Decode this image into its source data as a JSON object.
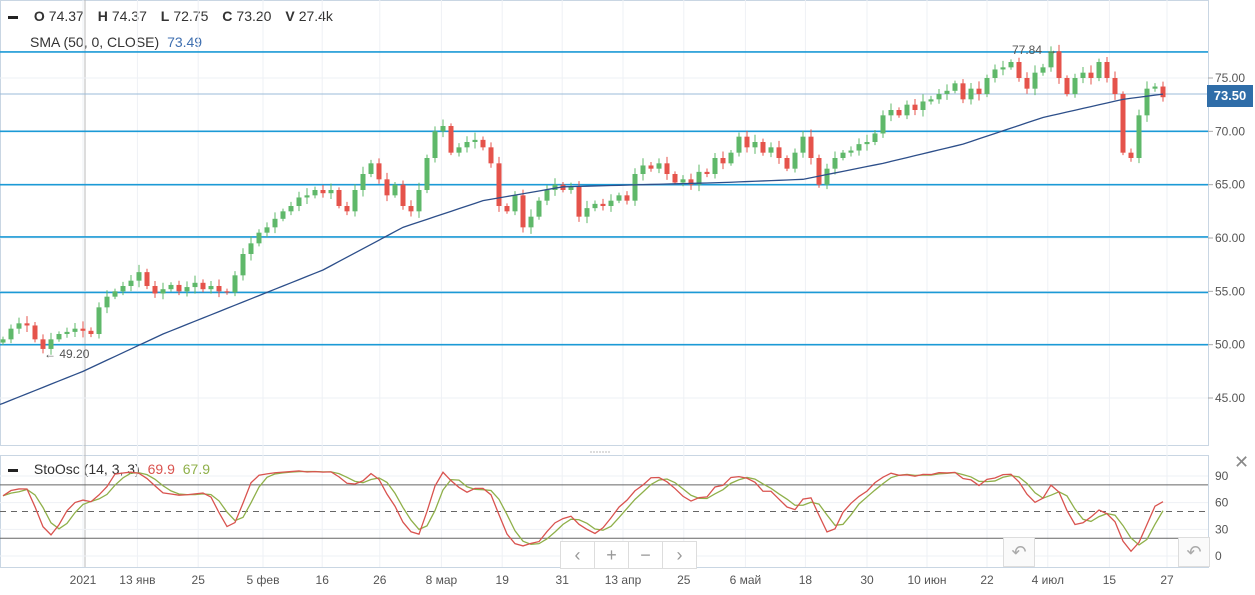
{
  "ohlc_legend": {
    "o_label": "O",
    "o": "74.37",
    "h_label": "H",
    "h": "74.37",
    "l_label": "L",
    "l": "72.75",
    "c_label": "C",
    "c": "73.20",
    "v_label": "V",
    "v": "27.4k"
  },
  "sma_legend": {
    "label": "SMA (50, 0, CLOSE)",
    "value": "73.49"
  },
  "stoch_legend": {
    "label": "StoOsc (14, 3, 3)",
    "k": "69.9",
    "d": "67.9"
  },
  "current_price": "73.50",
  "annotations": {
    "max_label": "77.84 →",
    "min_label": "← 49.20"
  },
  "nav": {
    "left": "‹",
    "plus": "+",
    "minus": "−",
    "right": "›",
    "reset": "↶",
    "close": "✕"
  },
  "colors": {
    "up": "#5fb86a",
    "down": "#e5534b",
    "sma": "#2d4f8a",
    "level": "#1b9ad6",
    "k": "#d9534f",
    "d": "#8fb04a"
  },
  "chart_data": {
    "type": "candlestick",
    "price_axis": {
      "ticks": [
        "75.00",
        "70.00",
        "65.00",
        "60.00",
        "55.00",
        "50.00",
        "45.00"
      ],
      "range": [
        40.5,
        80
      ]
    },
    "levels": [
      77.44,
      70.0,
      65.0,
      60.1,
      54.9,
      50.0
    ],
    "x_labels": [
      {
        "i": 10,
        "t": "2021"
      },
      {
        "i": 16.8,
        "t": "13 янв"
      },
      {
        "i": 24.4,
        "t": "25"
      },
      {
        "i": 32.5,
        "t": "5 фев"
      },
      {
        "i": 39.9,
        "t": "16"
      },
      {
        "i": 47.1,
        "t": "26"
      },
      {
        "i": 54.8,
        "t": "8 мар"
      },
      {
        "i": 62.4,
        "t": "19"
      },
      {
        "i": 69.9,
        "t": "31"
      },
      {
        "i": 77.5,
        "t": "13 апр"
      },
      {
        "i": 85.1,
        "t": "25"
      },
      {
        "i": 92.8,
        "t": "6 май"
      },
      {
        "i": 100.3,
        "t": "18"
      },
      {
        "i": 108,
        "t": "30"
      },
      {
        "i": 115.5,
        "t": "10 июн"
      },
      {
        "i": 123,
        "t": "22"
      },
      {
        "i": 130.6,
        "t": "4 июл"
      },
      {
        "i": 138.3,
        "t": "15"
      },
      {
        "i": 145.5,
        "t": "27"
      }
    ],
    "closes": [
      50.5,
      51.5,
      52.0,
      51.8,
      50.5,
      49.6,
      50.5,
      51.0,
      51.2,
      51.5,
      51.3,
      51.0,
      53.5,
      54.5,
      55.0,
      55.5,
      56.0,
      56.8,
      55.5,
      54.8,
      55.2,
      55.6,
      55.0,
      55.4,
      55.8,
      55.2,
      55.5,
      55.0,
      54.9,
      56.5,
      58.5,
      59.5,
      60.5,
      61.0,
      61.8,
      62.5,
      63.0,
      63.8,
      64.0,
      64.5,
      64.2,
      64.5,
      63.0,
      62.5,
      64.5,
      66.0,
      67.0,
      65.5,
      64.0,
      65.0,
      63.0,
      62.5,
      64.5,
      67.5,
      70.0,
      70.5,
      68.0,
      68.5,
      69.0,
      69.2,
      68.5,
      67.0,
      63.0,
      62.5,
      64.0,
      61.0,
      62.0,
      63.5,
      64.5,
      65.0,
      64.5,
      64.8,
      62.0,
      62.8,
      63.2,
      63.0,
      63.5,
      64.0,
      63.5,
      66.0,
      66.8,
      66.5,
      67.0,
      66.0,
      65.2,
      65.5,
      65.0,
      66.2,
      66.0,
      67.5,
      67.0,
      68.0,
      69.5,
      68.5,
      69.0,
      68.0,
      68.5,
      67.5,
      66.5,
      68.0,
      69.5,
      67.5,
      65.0,
      66.5,
      67.5,
      68.0,
      68.2,
      68.8,
      69.0,
      69.8,
      71.5,
      72.0,
      71.5,
      72.5,
      72.0,
      72.8,
      73.0,
      73.5,
      73.8,
      74.5,
      73.0,
      74.0,
      73.5,
      75.0,
      75.8,
      76.0,
      76.5,
      75.0,
      74.0,
      75.5,
      76.0,
      77.5,
      75.0,
      73.5,
      75.0,
      75.5,
      75.0,
      76.5,
      75.0,
      73.5,
      68.0,
      67.5,
      71.5,
      74.0,
      74.2,
      73.2
    ],
    "sma_points": [
      [
        0,
        44.5
      ],
      [
        10,
        47.5
      ],
      [
        20,
        51
      ],
      [
        30,
        54
      ],
      [
        40,
        57
      ],
      [
        50,
        61
      ],
      [
        60,
        63.5
      ],
      [
        70,
        64.8
      ],
      [
        80,
        65
      ],
      [
        90,
        65.2
      ],
      [
        100,
        65.5
      ],
      [
        110,
        67
      ],
      [
        120,
        68.8
      ],
      [
        130,
        71.3
      ],
      [
        140,
        73.0
      ],
      [
        145,
        73.49
      ]
    ],
    "stoch_axis": {
      "ticks": [
        "90",
        "60",
        "30",
        "0"
      ],
      "levels": [
        80,
        50,
        20
      ],
      "range": [
        -5,
        110
      ]
    }
  }
}
